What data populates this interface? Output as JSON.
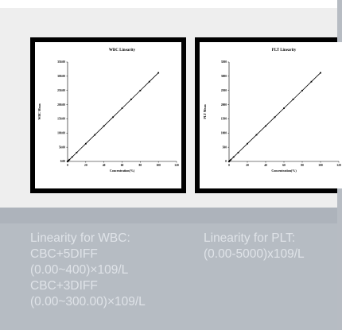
{
  "colors": {
    "panel_top": "#eeeeee",
    "panel_bottom": "#b6bcc3",
    "caption_text": "#dfe3e8",
    "chart_line": "#000000"
  },
  "chart_data": [
    {
      "type": "line",
      "title": "WBC Linearity",
      "xlabel": "Concentration(%)",
      "ylabel": "WBC Mean",
      "xlim": [
        0,
        120
      ],
      "ylim": [
        0,
        350
      ],
      "x_ticks": [
        "0",
        "20",
        "40",
        "60",
        "80",
        "100",
        "120"
      ],
      "y_ticks": [
        "0.00",
        "50.00",
        "100.00",
        "150.00",
        "200.00",
        "250.00",
        "300.00",
        "350.00"
      ],
      "x_tick_values": [
        0,
        20,
        40,
        60,
        80,
        100,
        120
      ],
      "y_tick_values": [
        0,
        50,
        100,
        150,
        200,
        250,
        300,
        350
      ],
      "grid": false,
      "series": [
        {
          "x": [
            0,
            1,
            2,
            5,
            10,
            20,
            30,
            40,
            50,
            60,
            70,
            80,
            90,
            100
          ],
          "y": [
            0,
            3.1,
            6.2,
            15.6,
            31.2,
            62.4,
            93.6,
            124.8,
            156,
            187.2,
            218.4,
            249.6,
            280.8,
            312
          ]
        }
      ]
    },
    {
      "type": "line",
      "title": "PLT Linearity",
      "xlabel": "Concentration(%)",
      "ylabel": "PLT Mean",
      "xlim": [
        0,
        120
      ],
      "ylim": [
        0,
        3500
      ],
      "x_ticks": [
        "0",
        "20",
        "40",
        "60",
        "80",
        "100",
        "120"
      ],
      "y_ticks": [
        "0",
        "500",
        "1000",
        "1500",
        "2000",
        "2500",
        "3000",
        "3500"
      ],
      "x_tick_values": [
        0,
        20,
        40,
        60,
        80,
        100,
        120
      ],
      "y_tick_values": [
        0,
        500,
        1000,
        1500,
        2000,
        2500,
        3000,
        3500
      ],
      "grid": false,
      "series": [
        {
          "x": [
            0,
            1,
            2,
            5,
            10,
            20,
            30,
            40,
            50,
            60,
            70,
            80,
            90,
            100
          ],
          "y": [
            0,
            31,
            62,
            156,
            312,
            624,
            936,
            1248,
            1560,
            1872,
            2184,
            2496,
            2808,
            3120
          ]
        }
      ]
    }
  ],
  "captions": {
    "wbc": [
      "Linearity for WBC:",
      "CBC+5DIFF",
      "(0.00~400)×109/L",
      "CBC+3DIFF",
      "(0.00~300.00)×109/L"
    ],
    "plt": [
      "Linearity for PLT:",
      "(0.00-5000)x109/L"
    ]
  }
}
